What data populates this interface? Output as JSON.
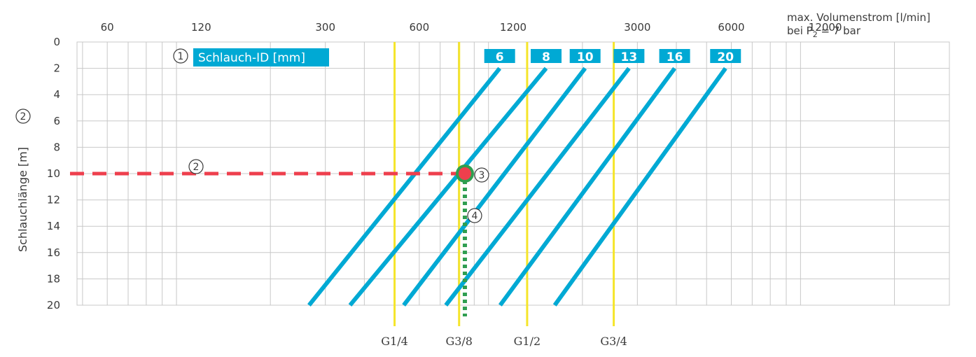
{
  "chart_data": {
    "type": "line",
    "header": {
      "line1": "max. Volumenstrom [l/min]",
      "line2_prefix": "bei P",
      "line2_sub": "2",
      "line2_suffix": " = 7 bar"
    },
    "ylabel": "Schlauchlänge [m]",
    "ylabel_marker": "2",
    "x_scale": "log",
    "xlim": [
      48,
      30000
    ],
    "x_ticks": [
      {
        "value": 60,
        "label": "60"
      },
      {
        "value": 120,
        "label": "120"
      },
      {
        "value": 300,
        "label": "300"
      },
      {
        "value": 600,
        "label": "600"
      },
      {
        "value": 1200,
        "label": "1200"
      },
      {
        "value": 3000,
        "label": "3000"
      },
      {
        "value": 6000,
        "label": "6000"
      },
      {
        "value": 12000,
        "label": "12000"
      }
    ],
    "ylim": [
      0,
      20
    ],
    "y_ticks": [
      "0",
      "2",
      "4",
      "6",
      "8",
      "10",
      "12",
      "14",
      "16",
      "18",
      "20"
    ],
    "legend": {
      "marker": "1",
      "title": "Schlauch-ID [mm]"
    },
    "series": [
      {
        "name": "6",
        "x": [
          266,
          1086
        ],
        "y": [
          20,
          2
        ]
      },
      {
        "name": "8",
        "x": [
          360,
          1530
        ],
        "y": [
          20,
          2
        ]
      },
      {
        "name": "10",
        "x": [
          535,
          2040
        ],
        "y": [
          20,
          2
        ]
      },
      {
        "name": "13",
        "x": [
          730,
          2820
        ],
        "y": [
          20,
          2
        ]
      },
      {
        "name": "16",
        "x": [
          1090,
          3950
        ],
        "y": [
          20,
          2
        ]
      },
      {
        "name": "20",
        "x": [
          1630,
          5750
        ],
        "y": [
          20,
          2
        ]
      }
    ],
    "thread_lines": [
      {
        "label": "G1/4",
        "x": 500
      },
      {
        "label": "G3/8",
        "x": 805
      },
      {
        "label": "G1/2",
        "x": 1330
      },
      {
        "label": "G3/4",
        "x": 2520
      }
    ],
    "annotations": {
      "length_line": {
        "marker": "2",
        "y": 10
      },
      "point": {
        "marker": "3",
        "x": 840,
        "y": 10
      },
      "flow_line": {
        "marker": "4",
        "x": 840
      }
    },
    "colors": {
      "hose": "#00a9d4",
      "thread": "#f5e52a",
      "length_line": "#ee3f4d",
      "flow_line": "#2f9e4f",
      "point_fill": "#ee3f4d",
      "point_ring": "#2f9e4f",
      "grid": "#c8c8c8"
    }
  }
}
